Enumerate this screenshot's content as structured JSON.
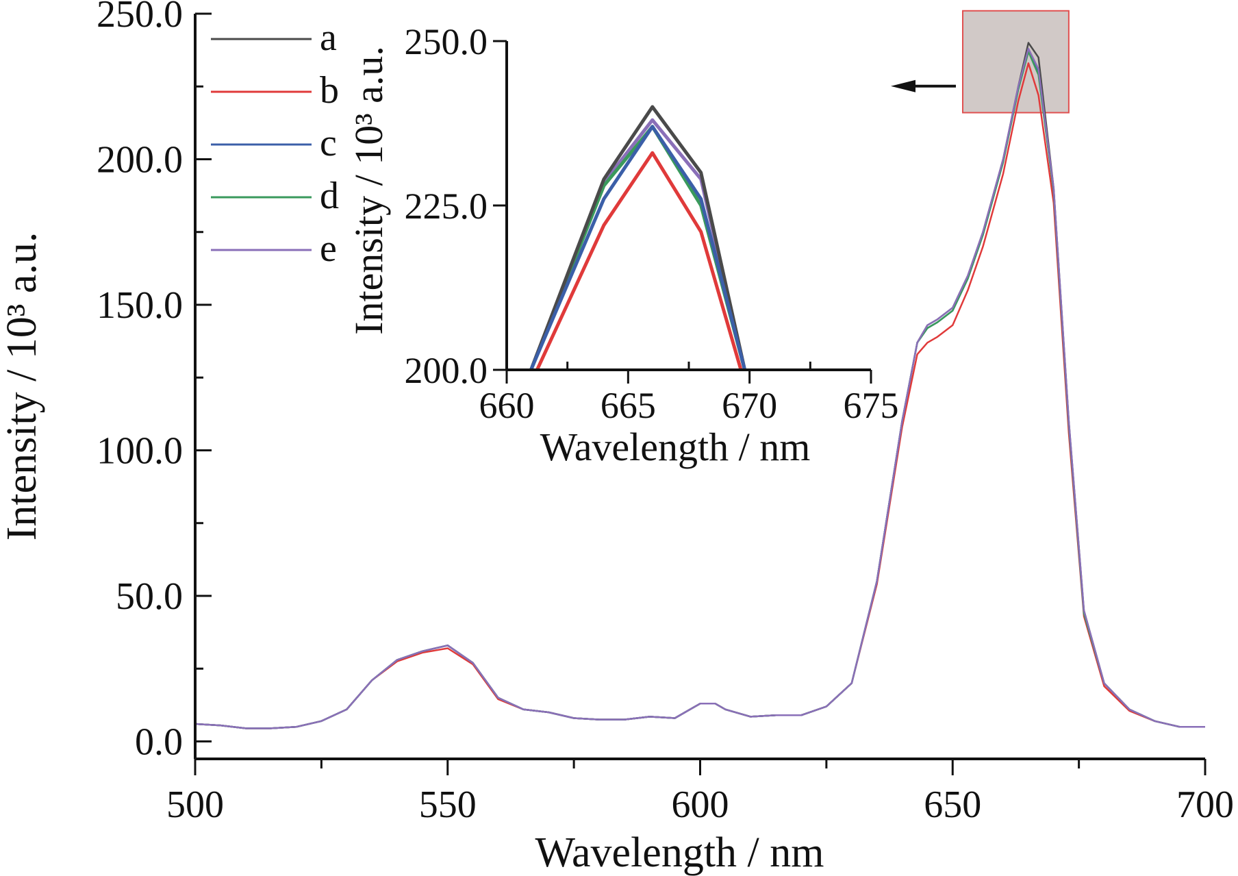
{
  "chart_data": [
    {
      "type": "line",
      "role": "main",
      "xlabel": "Wavelength / nm",
      "ylabel": "Intensity / 10³ a.u.",
      "xlim": [
        500,
        700
      ],
      "ylim": [
        -6,
        250
      ],
      "xticks": [
        "500",
        "550",
        "600",
        "650",
        "700"
      ],
      "yticks": [
        "0.0",
        "50.0",
        "100.0",
        "150.0",
        "200.0",
        "250.0"
      ],
      "ytick_values": [
        0,
        50,
        100,
        150,
        200,
        250
      ],
      "xtick_values": [
        500,
        550,
        600,
        650,
        700
      ],
      "grid": false,
      "legend_position": "top-left",
      "x": [
        500,
        505,
        510,
        515,
        520,
        525,
        530,
        535,
        540,
        545,
        550,
        555,
        560,
        565,
        570,
        575,
        580,
        585,
        590,
        595,
        600,
        603,
        605,
        610,
        615,
        620,
        625,
        630,
        635,
        640,
        643,
        645,
        647,
        650,
        653,
        656,
        660,
        663,
        665,
        667,
        670,
        673,
        676,
        680,
        685,
        690,
        695,
        700
      ],
      "series": [
        {
          "name": "a",
          "color": "#4a4a4a",
          "values": [
            6,
            5.5,
            4.5,
            4.5,
            5,
            7,
            11,
            21,
            28,
            31,
            33,
            27,
            15,
            11,
            10,
            8,
            7.5,
            7.5,
            8.5,
            8,
            13,
            13,
            11,
            8.5,
            9,
            9,
            12,
            20,
            55,
            110,
            137,
            143,
            145,
            149,
            160,
            175,
            200,
            225,
            240,
            235,
            190,
            110,
            45,
            20,
            11,
            7,
            5,
            5
          ]
        },
        {
          "name": "b",
          "color": "#e03a3a",
          "values": [
            6,
            5.5,
            4.5,
            4.5,
            5,
            7,
            11,
            21,
            27.5,
            30.5,
            32,
            26.5,
            14.5,
            11,
            10,
            8,
            7.5,
            7.5,
            8.5,
            8,
            13,
            13,
            11,
            8.5,
            9,
            9,
            12,
            20,
            54,
            108,
            133,
            137,
            139,
            143,
            155,
            170,
            195,
            220,
            233,
            222,
            185,
            106,
            43,
            19,
            10.5,
            7,
            5,
            5
          ]
        },
        {
          "name": "c",
          "color": "#3b5fa8",
          "values": [
            6,
            5.5,
            4.5,
            4.5,
            5,
            7,
            11,
            21,
            28,
            31,
            33,
            27,
            15,
            11,
            10,
            8,
            7.5,
            7.5,
            8.5,
            8,
            13,
            13,
            11,
            8.5,
            9,
            9,
            12,
            20,
            55,
            110,
            137,
            142,
            144,
            148,
            159,
            174,
            199,
            224,
            237,
            230,
            189,
            109,
            44,
            20,
            11,
            7,
            5,
            5
          ]
        },
        {
          "name": "d",
          "color": "#3a9a5c",
          "values": [
            6,
            5.5,
            4.5,
            4.5,
            5,
            7,
            11,
            21,
            28,
            31,
            33,
            27,
            15,
            11,
            10,
            8,
            7.5,
            7.5,
            8.5,
            8,
            13,
            13,
            11,
            8.5,
            9,
            9,
            12,
            20,
            55,
            110,
            137,
            142,
            144,
            148,
            159,
            174,
            199,
            224,
            237,
            229,
            189,
            109,
            44,
            20,
            11,
            7,
            5,
            5
          ]
        },
        {
          "name": "e",
          "color": "#8a6fb8",
          "values": [
            6,
            5.5,
            4.5,
            4.5,
            5,
            7,
            11,
            21,
            28,
            31,
            33,
            27,
            15,
            11,
            10,
            8,
            7.5,
            7.5,
            8.5,
            8,
            13,
            13,
            11,
            8.5,
            9,
            9,
            12,
            20,
            55,
            110,
            137,
            143,
            145,
            149,
            160,
            175,
            200,
            225,
            238,
            231,
            190,
            110,
            45,
            20,
            11,
            7,
            5,
            5
          ]
        }
      ],
      "zoom_box": {
        "x_range": [
          652,
          673
        ],
        "y_range": [
          216,
          251
        ],
        "fill": "#c9c0bd",
        "stroke": "#e05050"
      }
    },
    {
      "type": "line",
      "role": "inset",
      "xlabel": "Wavelength / nm",
      "ylabel": "Intensity / 10³ a.u.",
      "xlim": [
        660,
        675
      ],
      "ylim": [
        200,
        250
      ],
      "xticks": [
        "660",
        "665",
        "670",
        "675"
      ],
      "xtick_values": [
        660,
        665,
        670,
        675
      ],
      "yticks": [
        "200.0",
        "225.0",
        "250.0"
      ],
      "ytick_values": [
        200,
        225,
        250
      ],
      "grid": false,
      "x": [
        661,
        664,
        666,
        668,
        669.8
      ],
      "series": [
        {
          "name": "a",
          "color": "#4a4a4a",
          "values": [
            200,
            229,
            240,
            230,
            200
          ]
        },
        {
          "name": "b",
          "color": "#e03a3a",
          "values": [
            198,
            222,
            233,
            221,
            198
          ]
        },
        {
          "name": "c",
          "color": "#3b5fa8",
          "values": [
            200,
            226,
            237,
            226,
            200
          ]
        },
        {
          "name": "d",
          "color": "#3a9a5c",
          "values": [
            200,
            228,
            237,
            225,
            200
          ]
        },
        {
          "name": "e",
          "color": "#8a6fb8",
          "values": [
            200,
            228.5,
            238,
            229,
            200
          ]
        }
      ]
    }
  ]
}
